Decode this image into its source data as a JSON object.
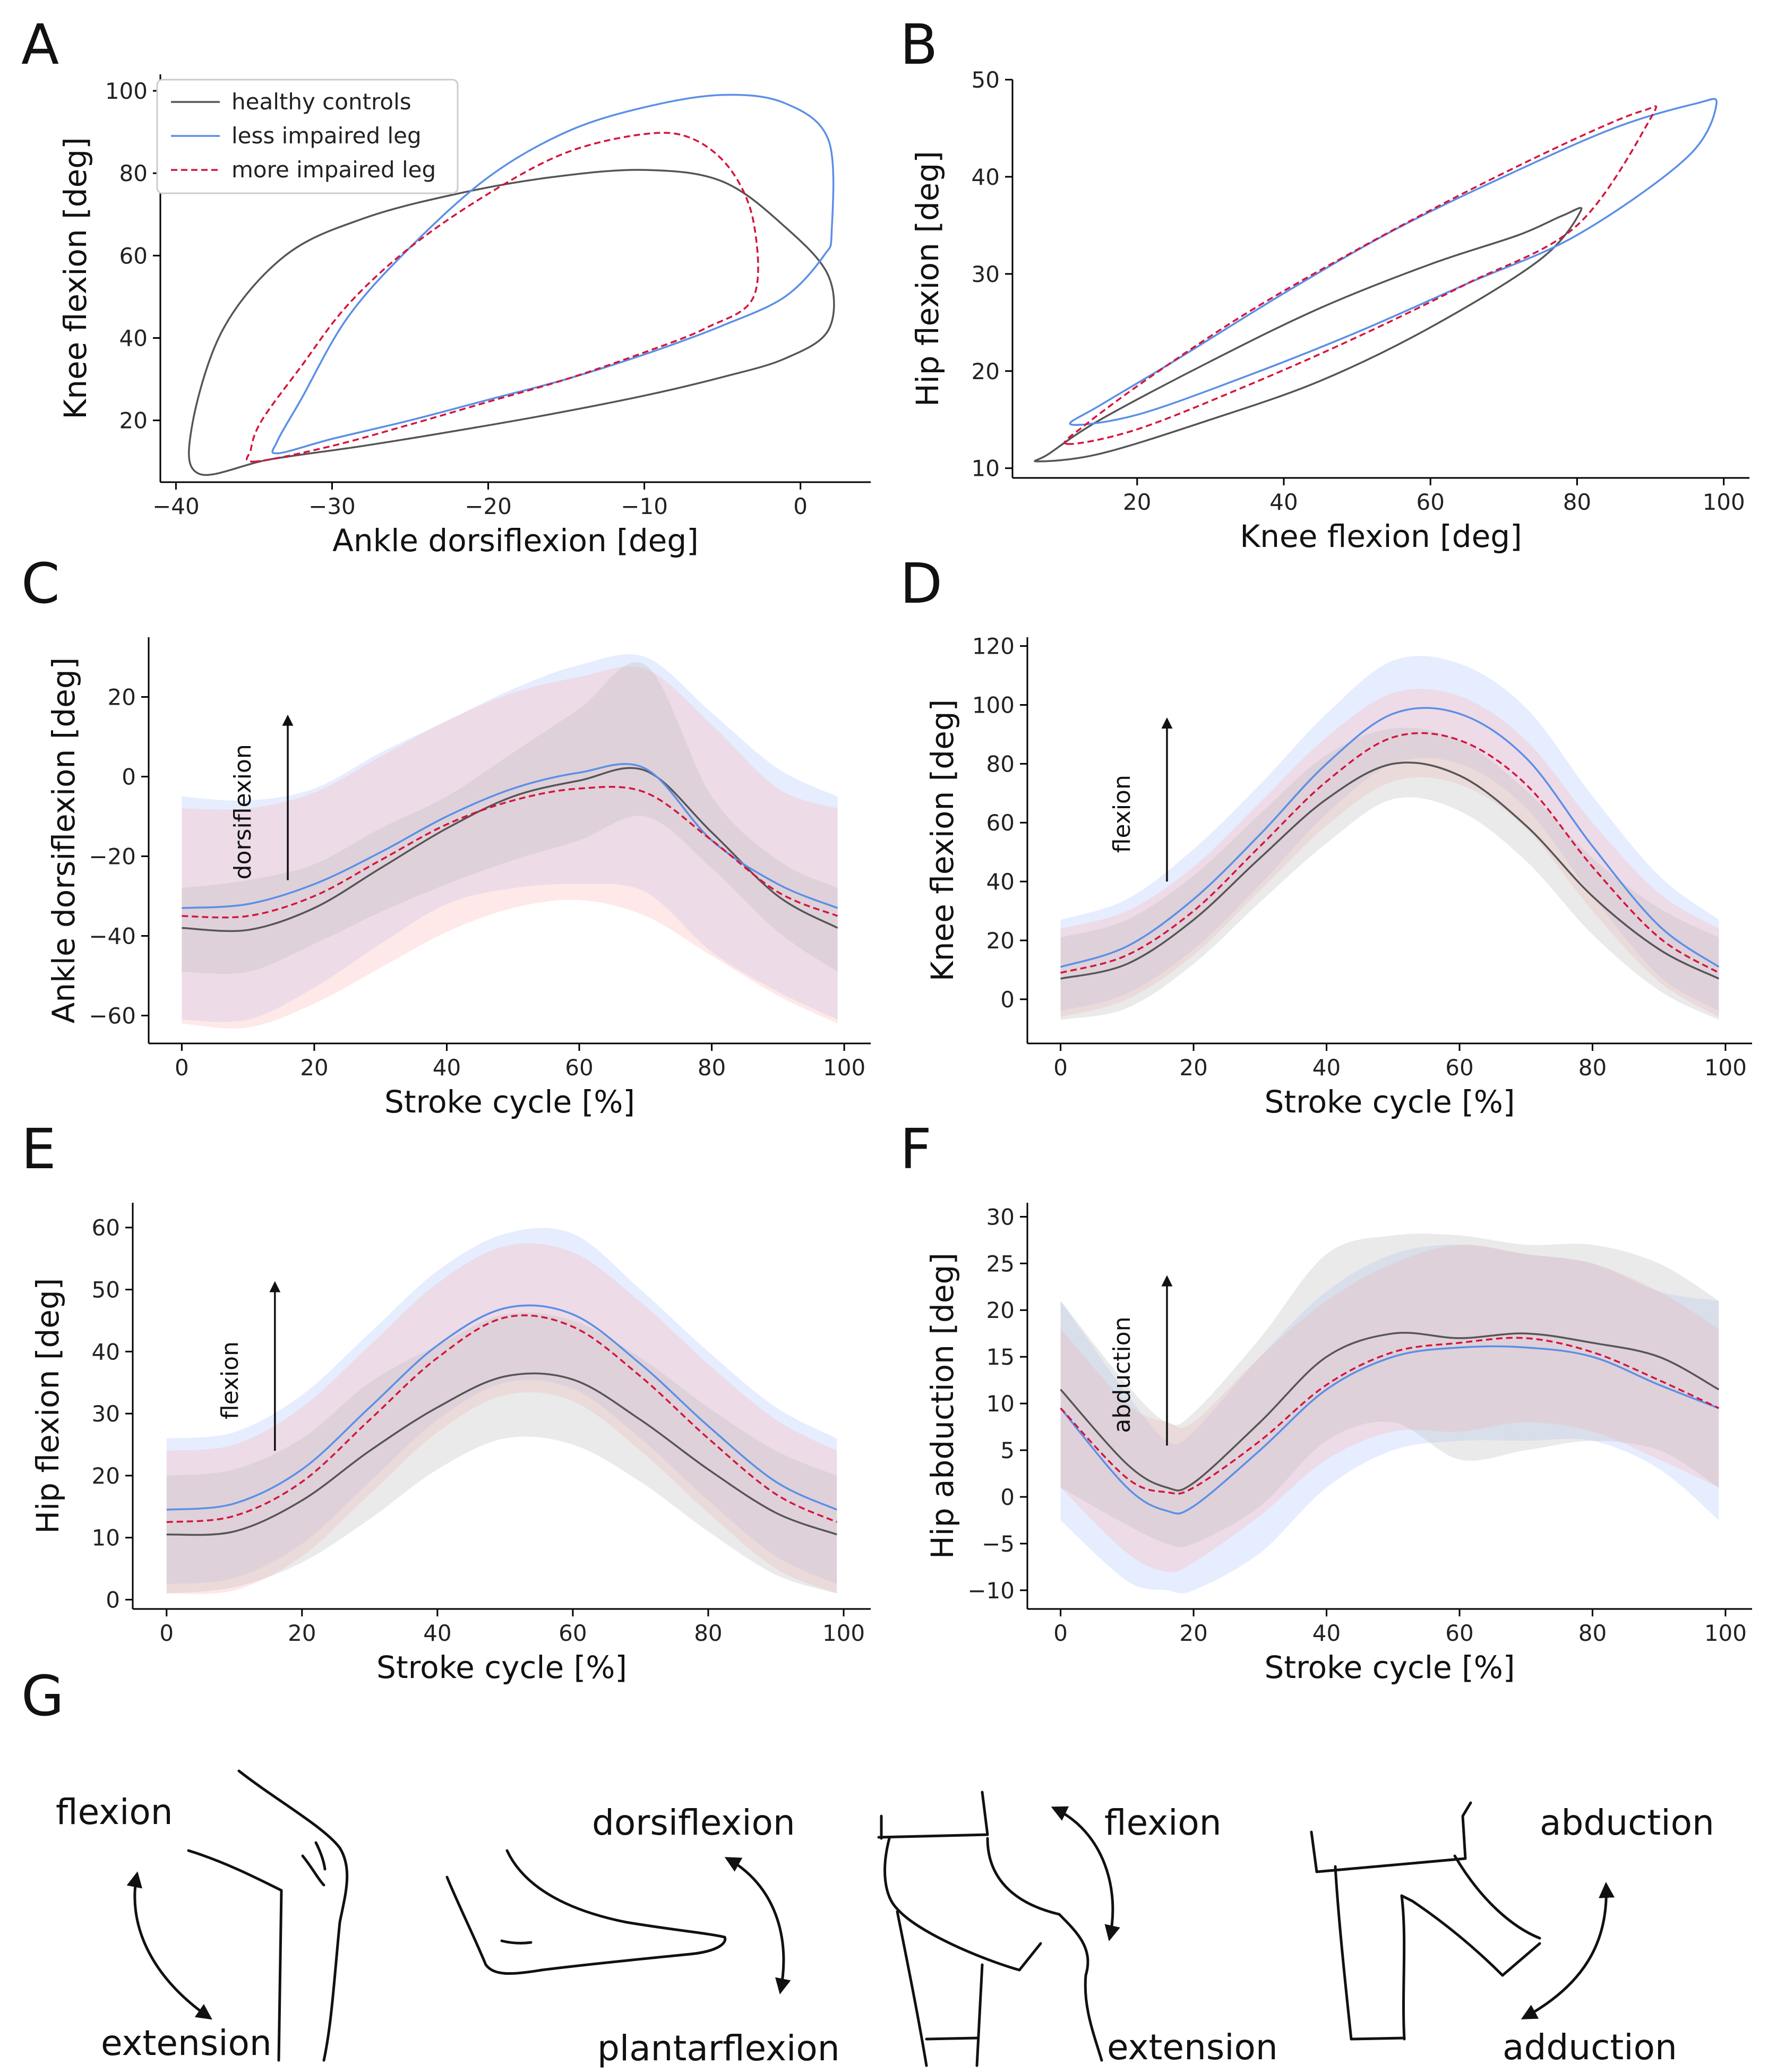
{
  "colors": {
    "healthy": "#555555",
    "less": "#5b8fe6",
    "more": "#d6143c",
    "band_healthy": "#bdbdbd",
    "band_less": "#a9c3ff",
    "band_more": "#ffb3b3"
  },
  "legend": {
    "healthy": "healthy controls",
    "less": "less impaired leg",
    "more": "more impaired leg"
  },
  "panels": {
    "A": "A",
    "B": "B",
    "C": "C",
    "D": "D",
    "E": "E",
    "F": "F",
    "G": "G"
  },
  "chart_data": [
    {
      "id": "A",
      "type": "line",
      "xlabel": "Ankle dorsiflexion [deg]",
      "ylabel": "Knee flexion [deg]",
      "xlim": [
        -41,
        4.5
      ],
      "ylim": [
        5,
        104
      ],
      "xticks": [
        -40,
        -30,
        -20,
        -10,
        0
      ],
      "xticklabels": [
        "−40",
        "−30",
        "−20",
        "−10",
        "0"
      ],
      "yticks": [
        20,
        40,
        60,
        80,
        100
      ],
      "yticklabels": [
        "20",
        "40",
        "60",
        "80",
        "100"
      ],
      "legend": "top-left",
      "series": [
        {
          "name": "healthy controls",
          "key": "healthy",
          "dash": false,
          "x": [
            -38.5,
            -34,
            -28,
            -22,
            -16,
            -10,
            -5,
            -1,
            1.8,
            1.8,
            -1,
            -5,
            -10,
            -16,
            -22,
            -28,
            -33,
            -37,
            -39,
            -38.5
          ],
          "y": [
            7,
            10.5,
            13.8,
            17.5,
            21.5,
            26,
            30.5,
            35,
            42,
            55,
            67,
            78,
            80.8,
            79,
            75,
            69,
            60,
            42,
            18,
            7
          ]
        },
        {
          "name": "less impaired leg",
          "key": "less",
          "dash": false,
          "x": [
            -33.5,
            -30,
            -25,
            -20,
            -15,
            -10,
            -5,
            -1,
            1.5,
            2,
            1.8,
            -1,
            -5,
            -10,
            -15,
            -20,
            -25,
            -29,
            -32,
            -33.5,
            -33.5
          ],
          "y": [
            12,
            15.5,
            20,
            25,
            30,
            36,
            43,
            50,
            60,
            66,
            88,
            97,
            99,
            96,
            90,
            79,
            62,
            45,
            25,
            15,
            12
          ]
        },
        {
          "name": "more impaired leg",
          "key": "more",
          "dash": true,
          "x": [
            -35,
            -30,
            -25,
            -20,
            -15,
            -10,
            -6,
            -3,
            -3,
            -4.5,
            -7,
            -10,
            -15,
            -20,
            -25,
            -29,
            -32,
            -34.5,
            -35.2,
            -35
          ],
          "y": [
            10,
            13.8,
            19,
            24.5,
            30,
            36.5,
            42.5,
            50,
            68,
            81,
            88.5,
            89.5,
            85,
            75,
            62,
            48,
            33,
            20,
            13,
            10
          ]
        }
      ]
    },
    {
      "id": "B",
      "type": "line",
      "xlabel": "Knee flexion [deg]",
      "ylabel": "Hip flexion [deg]",
      "xlim": [
        3,
        103.5
      ],
      "ylim": [
        9,
        50
      ],
      "xticks": [
        20,
        40,
        60,
        80,
        100
      ],
      "xticklabels": [
        "20",
        "40",
        "60",
        "80",
        "100"
      ],
      "yticks": [
        10,
        20,
        30,
        40,
        50
      ],
      "yticklabels": [
        "10",
        "20",
        "30",
        "40",
        "50"
      ],
      "series": [
        {
          "name": "healthy controls",
          "key": "healthy",
          "dash": false,
          "x": [
            6.5,
            15,
            30,
            45,
            60,
            75,
            80.5,
            78,
            72,
            60,
            45,
            30,
            15,
            8,
            6.5
          ],
          "y": [
            10.7,
            11.5,
            15,
            19,
            24.5,
            31.5,
            36.5,
            36,
            34,
            31,
            26.5,
            21,
            15,
            11.5,
            10.7
          ]
        },
        {
          "name": "less impaired leg",
          "key": "less",
          "dash": false,
          "x": [
            11,
            20,
            35,
            50,
            65,
            80,
            95,
            99,
            96,
            85,
            70,
            55,
            40,
            25,
            15,
            11
          ],
          "y": [
            14.5,
            15.5,
            19.5,
            24,
            29,
            34,
            42,
            47.5,
            47.5,
            45,
            40,
            34.5,
            28,
            21,
            16.5,
            14.5
          ]
        },
        {
          "name": "more impaired leg",
          "key": "more",
          "dash": true,
          "x": [
            10.5,
            20,
            35,
            50,
            65,
            80,
            90,
            89,
            80,
            65,
            50,
            35,
            22,
            13,
            10.5
          ],
          "y": [
            12.5,
            14,
            18.5,
            23.5,
            29,
            35,
            46,
            46.8,
            44,
            38.5,
            32.5,
            26,
            19.5,
            14.5,
            12.5
          ]
        }
      ]
    },
    {
      "id": "C",
      "type": "line",
      "xlabel": "Stroke cycle [%]",
      "ylabel": "Ankle dorsiflexion [deg]",
      "xlim": [
        -5,
        104
      ],
      "ylim": [
        -67,
        35
      ],
      "xticks": [
        0,
        20,
        40,
        60,
        80,
        100
      ],
      "xticklabels": [
        "0",
        "20",
        "40",
        "60",
        "80",
        "100"
      ],
      "yticks": [
        -60,
        -40,
        -20,
        0,
        20
      ],
      "yticklabels": [
        "−60",
        "−40",
        "−20",
        "0",
        "20"
      ],
      "annotation": {
        "text": "dorsiflexion",
        "x": 16,
        "y0": -26,
        "y1": 15
      },
      "x": [
        0,
        10,
        20,
        30,
        40,
        50,
        60,
        70,
        80,
        90,
        99
      ],
      "series": [
        {
          "name": "healthy controls",
          "key": "healthy",
          "dash": false,
          "values": [
            -38,
            -38.5,
            -33,
            -23,
            -13,
            -5,
            -1,
            1.5,
            -14,
            -30,
            -38
          ],
          "lower": [
            -49,
            -49,
            -42,
            -34,
            -27,
            -21,
            -16,
            -10,
            -23,
            -39,
            -49
          ],
          "upper": [
            -28,
            -26,
            -22,
            -13,
            -5,
            6,
            17,
            28,
            -5,
            -21,
            -28
          ]
        },
        {
          "name": "less impaired leg",
          "key": "less",
          "dash": false,
          "values": [
            -33,
            -32,
            -27,
            -19,
            -10,
            -3,
            1,
            2,
            -16,
            -27,
            -33
          ],
          "lower": [
            -61,
            -61,
            -53,
            -42,
            -32,
            -28,
            -27,
            -29,
            -44,
            -54,
            -61
          ],
          "upper": [
            -5,
            -6,
            -3,
            6,
            14,
            22,
            28,
            30,
            16,
            2,
            -5
          ]
        },
        {
          "name": "more impaired leg",
          "key": "more",
          "dash": true,
          "values": [
            -35,
            -35,
            -30,
            -21,
            -12,
            -6,
            -3,
            -4,
            -16,
            -29,
            -35
          ],
          "lower": [
            -62,
            -63,
            -57,
            -48,
            -39,
            -33,
            -31,
            -35,
            -45,
            -55,
            -62
          ],
          "upper": [
            -8,
            -8,
            -4,
            5,
            14,
            21,
            25,
            27,
            13,
            -3,
            -8
          ]
        }
      ]
    },
    {
      "id": "D",
      "type": "line",
      "xlabel": "Stroke cycle [%]",
      "ylabel": "Knee flexion [deg]",
      "xlim": [
        -5,
        104
      ],
      "ylim": [
        -15,
        123
      ],
      "xticks": [
        0,
        20,
        40,
        60,
        80,
        100
      ],
      "xticklabels": [
        "0",
        "20",
        "40",
        "60",
        "80",
        "100"
      ],
      "yticks": [
        0,
        20,
        40,
        60,
        80,
        100,
        120
      ],
      "yticklabels": [
        "0",
        "20",
        "40",
        "60",
        "80",
        "100",
        "120"
      ],
      "annotation": {
        "text": "flexion",
        "x": 16,
        "y0": 40,
        "y1": 95
      },
      "x": [
        0,
        10,
        20,
        30,
        40,
        50,
        60,
        70,
        80,
        90,
        99
      ],
      "series": [
        {
          "name": "healthy controls",
          "key": "healthy",
          "dash": false,
          "values": [
            7,
            12,
            27,
            48,
            68,
            80,
            76,
            59,
            35,
            17,
            7
          ],
          "lower": [
            -7,
            -3,
            12,
            33,
            53,
            68,
            64,
            47,
            22,
            3,
            -7
          ],
          "upper": [
            21,
            27,
            42,
            63,
            83,
            92,
            88,
            71,
            48,
            31,
            21
          ]
        },
        {
          "name": "less impaired leg",
          "key": "less",
          "dash": false,
          "values": [
            11,
            18,
            34,
            56,
            80,
            97,
            97,
            82,
            52,
            25,
            11
          ],
          "lower": [
            -4,
            2,
            17,
            39,
            63,
            80,
            80,
            65,
            35,
            8,
            -4
          ],
          "upper": [
            27,
            34,
            51,
            73,
            97,
            115,
            114,
            99,
            69,
            42,
            27
          ]
        },
        {
          "name": "more impaired leg",
          "key": "more",
          "dash": true,
          "values": [
            9,
            15,
            30,
            52,
            74,
            89,
            88,
            73,
            45,
            21,
            9
          ],
          "lower": [
            -6,
            0,
            15,
            37,
            59,
            74,
            73,
            58,
            30,
            6,
            -6
          ],
          "upper": [
            24,
            30,
            45,
            67,
            89,
            104,
            103,
            88,
            60,
            36,
            24
          ]
        }
      ]
    },
    {
      "id": "E",
      "type": "line",
      "xlabel": "Stroke cycle [%]",
      "ylabel": "Hip flexion [deg]",
      "xlim": [
        -5,
        104
      ],
      "ylim": [
        -1.5,
        64
      ],
      "xticks": [
        0,
        20,
        40,
        60,
        80,
        100
      ],
      "xticklabels": [
        "0",
        "20",
        "40",
        "60",
        "80",
        "100"
      ],
      "yticks": [
        0,
        10,
        20,
        30,
        40,
        50,
        60
      ],
      "yticklabels": [
        "0",
        "10",
        "20",
        "30",
        "40",
        "50",
        "60"
      ],
      "annotation": {
        "text": "flexion",
        "x": 16,
        "y0": 24,
        "y1": 51
      },
      "x": [
        0,
        10,
        20,
        30,
        40,
        50,
        60,
        70,
        80,
        90,
        99
      ],
      "series": [
        {
          "name": "healthy controls",
          "key": "healthy",
          "dash": false,
          "values": [
            10.5,
            11,
            16,
            24,
            31,
            36,
            35.5,
            29,
            21,
            14,
            10.5
          ],
          "lower": [
            1,
            2,
            6,
            13,
            21,
            26,
            25,
            19,
            11,
            4,
            1
          ],
          "upper": [
            20,
            21,
            26,
            35,
            41,
            46,
            45,
            39,
            31,
            24,
            20
          ]
        },
        {
          "name": "less impaired leg",
          "key": "less",
          "dash": false,
          "values": [
            14.5,
            15.5,
            21,
            31,
            41,
            47,
            46,
            38,
            28,
            19,
            14.5
          ],
          "lower": [
            2.5,
            3.5,
            9,
            19,
            29,
            35,
            34,
            26,
            16,
            7,
            2.5
          ],
          "upper": [
            26,
            27,
            33,
            43,
            53,
            59,
            59,
            50,
            40,
            31,
            26
          ]
        },
        {
          "name": "more impaired leg",
          "key": "more",
          "dash": true,
          "values": [
            12.5,
            13.5,
            19,
            29,
            39,
            45.5,
            44,
            36,
            26,
            17,
            12.5
          ],
          "lower": [
            1,
            1.5,
            7,
            17,
            27,
            33,
            32,
            24,
            14,
            5,
            1
          ],
          "upper": [
            24,
            25,
            31,
            41,
            51,
            57,
            56,
            48,
            38,
            29,
            24
          ]
        }
      ]
    },
    {
      "id": "F",
      "type": "line",
      "xlabel": "Stroke cycle [%]",
      "ylabel": "Hip abduction [deg]",
      "xlim": [
        -5,
        104
      ],
      "ylim": [
        -12,
        31.5
      ],
      "xticks": [
        0,
        20,
        40,
        60,
        80,
        100
      ],
      "xticklabels": [
        "0",
        "20",
        "40",
        "60",
        "80",
        "100"
      ],
      "yticks": [
        -10,
        -5,
        0,
        5,
        10,
        15,
        20,
        25,
        30
      ],
      "yticklabels": [
        "−10",
        "−5",
        "0",
        "5",
        "10",
        "15",
        "20",
        "25",
        "30"
      ],
      "annotation": {
        "text": "abduction",
        "x": 16,
        "y0": 5.5,
        "y1": 23.5
      },
      "x": [
        0,
        10,
        16,
        20,
        30,
        40,
        50,
        60,
        70,
        80,
        90,
        99
      ],
      "series": [
        {
          "name": "healthy controls",
          "key": "healthy",
          "dash": false,
          "values": [
            11.5,
            3.5,
            1,
            1.5,
            8,
            15,
            17.5,
            17,
            17.5,
            16.5,
            15,
            11.5
          ],
          "lower": [
            1,
            -3,
            -5,
            -5,
            -1,
            6,
            8,
            4,
            5,
            6,
            5,
            1
          ],
          "upper": [
            21,
            12,
            8,
            9,
            17,
            26,
            28,
            28,
            27,
            27,
            25,
            21
          ]
        },
        {
          "name": "less impaired leg",
          "key": "less",
          "dash": false,
          "values": [
            9.5,
            1,
            -1.5,
            -1,
            5,
            11.5,
            15,
            16,
            16,
            15,
            12,
            9.5
          ],
          "lower": [
            -2.5,
            -9,
            -10,
            -10,
            -6,
            1,
            5,
            6,
            6,
            6,
            3,
            -2.5
          ],
          "upper": [
            21,
            11,
            6,
            7,
            15,
            22,
            26,
            27,
            26,
            25,
            22,
            21
          ]
        },
        {
          "name": "more impaired leg",
          "key": "more",
          "dash": true,
          "values": [
            9.5,
            2,
            0.5,
            1,
            6,
            12,
            15.5,
            16.5,
            17,
            15.5,
            12.5,
            9.5
          ],
          "lower": [
            1,
            -6,
            -8,
            -7,
            -2,
            4,
            7,
            7,
            8,
            7,
            4,
            1
          ],
          "upper": [
            18,
            10,
            8,
            8,
            15,
            21,
            25,
            27,
            26,
            25,
            22,
            18
          ]
        }
      ]
    }
  ],
  "g_labels": {
    "knee_flexion": "flexion",
    "knee_extension": "extension",
    "dorsiflexion": "dorsiflexion",
    "plantarflexion": "plantarflexion",
    "hip_flexion": "flexion",
    "hip_extension": "extension",
    "abduction": "abduction",
    "adduction": "adduction"
  }
}
